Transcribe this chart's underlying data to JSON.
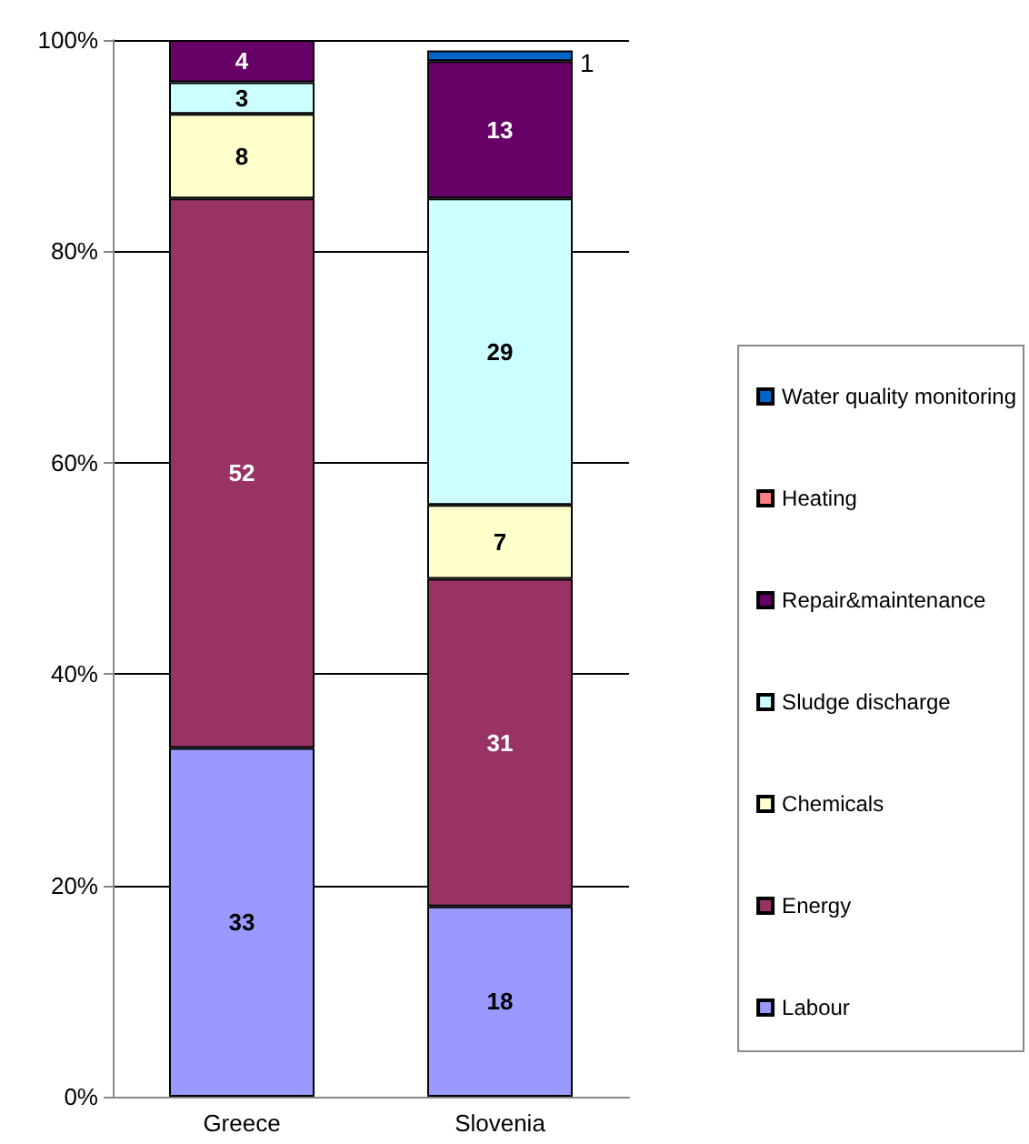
{
  "chart_data": {
    "type": "bar",
    "stacked": true,
    "categories": [
      "Greece",
      "Slovenia"
    ],
    "series": [
      {
        "name": "Labour",
        "color": "#9999ff",
        "values": [
          33,
          18
        ]
      },
      {
        "name": "Energy",
        "color": "#993366",
        "values": [
          52,
          31
        ]
      },
      {
        "name": "Chemicals",
        "color": "#ffffcc",
        "values": [
          8,
          7
        ]
      },
      {
        "name": "Sludge discharge",
        "color": "#ccffff",
        "values": [
          3,
          29
        ]
      },
      {
        "name": "Repair&maintenance",
        "color": "#660066",
        "values": [
          4,
          13
        ]
      },
      {
        "name": "Heating",
        "color": "#ff8080",
        "values": [
          null,
          null
        ]
      },
      {
        "name": "Water quality monitoring",
        "color": "#0066cc",
        "values": [
          null,
          1
        ]
      }
    ],
    "ylim": [
      0,
      100
    ],
    "yticks": [
      {
        "value": 0,
        "label": "0%"
      },
      {
        "value": 20,
        "label": "20%"
      },
      {
        "value": 40,
        "label": "40%"
      },
      {
        "value": 60,
        "label": "60%"
      },
      {
        "value": 80,
        "label": "80%"
      },
      {
        "value": 100,
        "label": "100%"
      }
    ],
    "grid": "y",
    "legend": "right",
    "data_labels": true
  }
}
